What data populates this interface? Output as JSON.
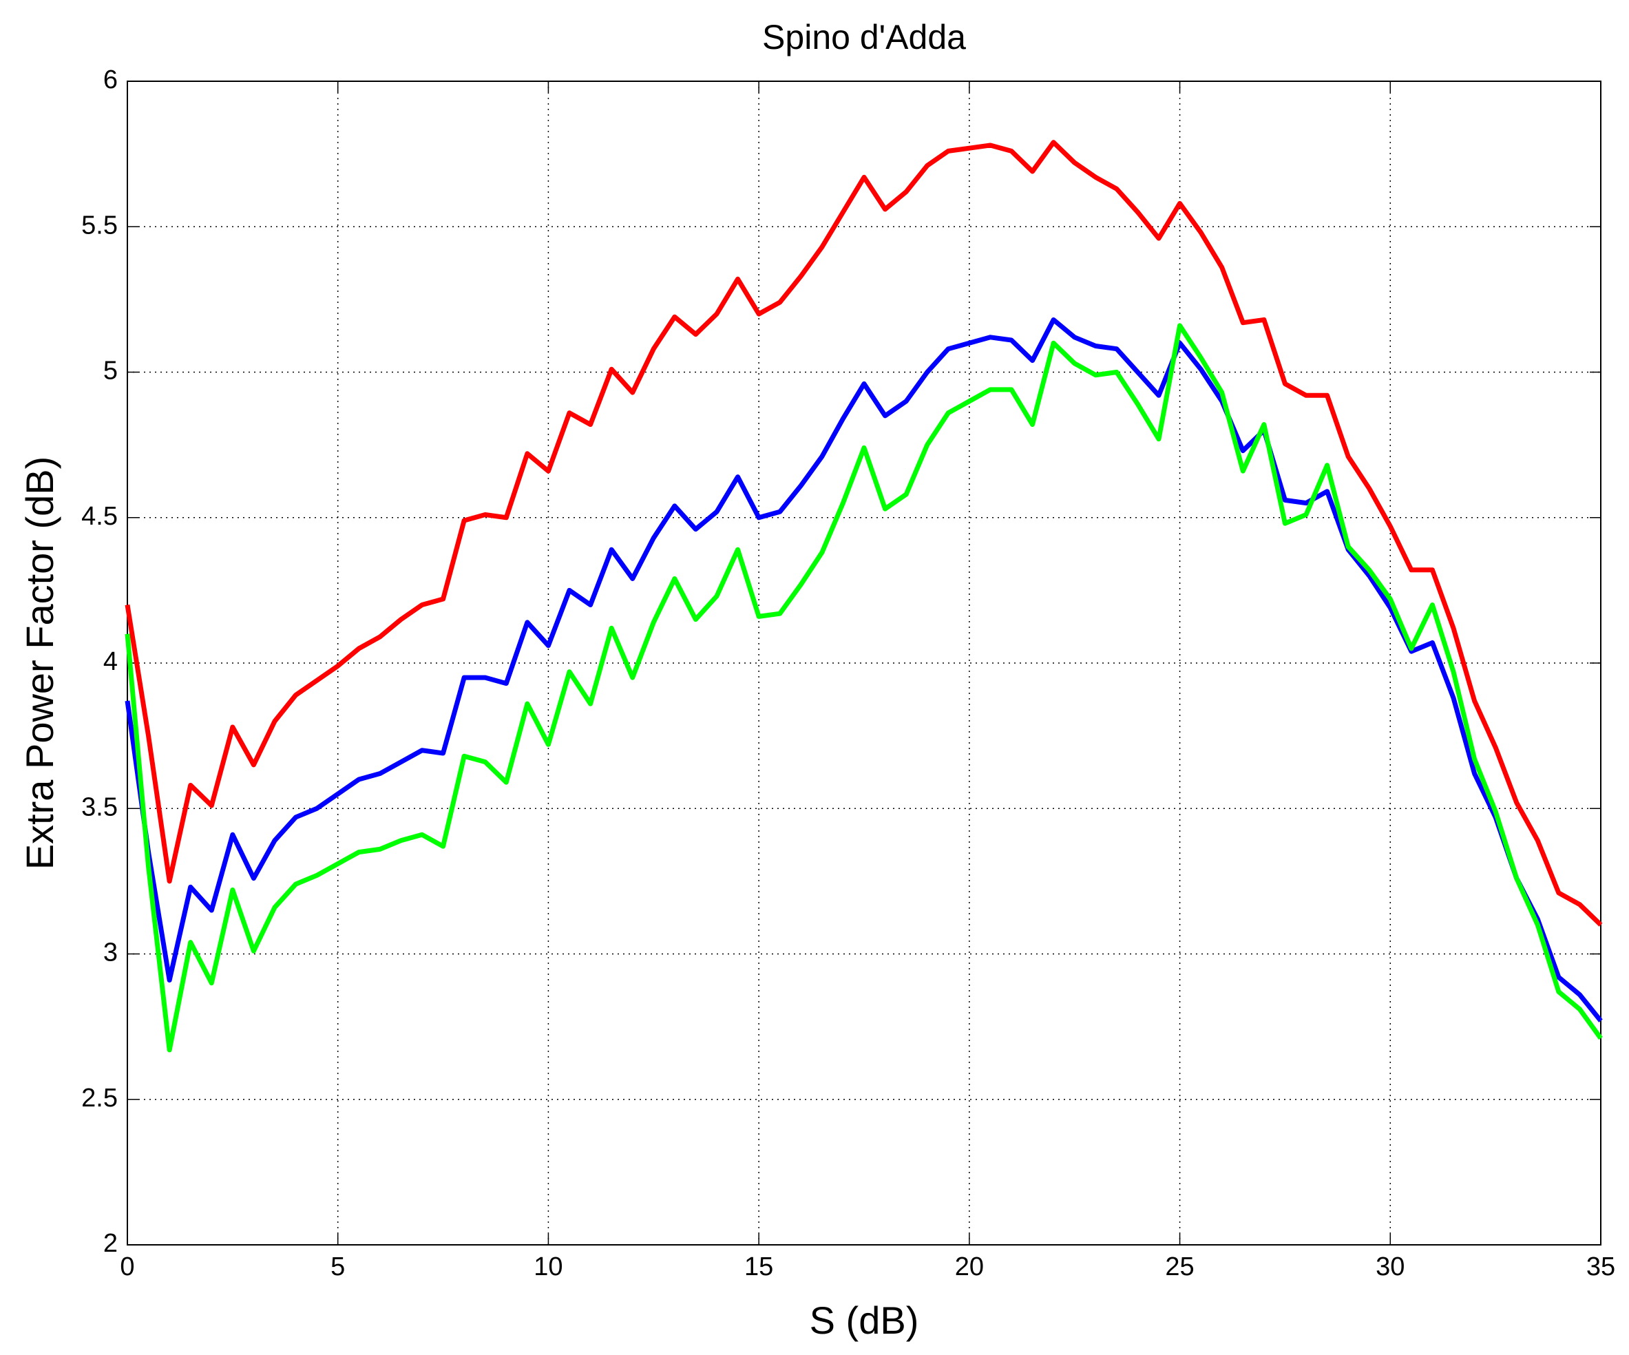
{
  "chart_data": {
    "type": "line",
    "title": "Spino d'Adda",
    "xlabel": "S (dB)",
    "ylabel": "Extra Power Factor (dB)",
    "x": [
      0,
      0.5,
      1,
      1.5,
      2,
      2.5,
      3,
      3.5,
      4,
      4.5,
      5,
      5.5,
      6,
      6.5,
      7,
      7.5,
      8,
      8.5,
      9,
      9.5,
      10,
      10.5,
      11,
      11.5,
      12,
      12.5,
      13,
      13.5,
      14,
      14.5,
      15,
      15.5,
      16,
      16.5,
      17,
      17.5,
      18,
      18.5,
      19,
      19.5,
      20,
      20.5,
      21,
      21.5,
      22,
      22.5,
      23,
      23.5,
      24,
      24.5,
      25,
      25.5,
      26,
      26.5,
      27,
      27.5,
      28,
      28.5,
      29,
      29.5,
      30,
      30.5,
      31,
      31.5,
      32,
      32.5,
      33,
      33.5,
      34,
      34.5,
      35
    ],
    "series": [
      {
        "color": "#ff0000",
        "values": [
          4.2,
          3.75,
          3.25,
          3.58,
          3.51,
          3.78,
          3.65,
          3.8,
          3.89,
          3.94,
          3.99,
          4.05,
          4.09,
          4.15,
          4.2,
          4.22,
          4.49,
          4.51,
          4.5,
          4.72,
          4.66,
          4.86,
          4.82,
          5.01,
          4.93,
          5.08,
          5.19,
          5.13,
          5.2,
          5.32,
          5.2,
          5.24,
          5.33,
          5.43,
          5.55,
          5.67,
          5.56,
          5.62,
          5.71,
          5.76,
          5.77,
          5.78,
          5.76,
          5.69,
          5.79,
          5.72,
          5.67,
          5.63,
          5.55,
          5.46,
          5.58,
          5.48,
          5.36,
          5.17,
          5.18,
          4.96,
          4.92,
          4.92,
          4.71,
          4.6,
          4.47,
          4.32,
          4.32,
          4.12,
          3.87,
          3.71,
          3.52,
          3.39,
          3.21,
          3.17,
          3.1
        ]
      },
      {
        "color": "#0000ff",
        "values": [
          3.87,
          3.35,
          2.91,
          3.23,
          3.15,
          3.41,
          3.26,
          3.39,
          3.47,
          3.5,
          3.55,
          3.6,
          3.62,
          3.66,
          3.7,
          3.69,
          3.95,
          3.95,
          3.93,
          4.14,
          4.06,
          4.25,
          4.2,
          4.39,
          4.29,
          4.43,
          4.54,
          4.46,
          4.52,
          4.64,
          4.5,
          4.52,
          4.61,
          4.71,
          4.84,
          4.96,
          4.85,
          4.9,
          5.0,
          5.08,
          5.1,
          5.12,
          5.11,
          5.04,
          5.18,
          5.12,
          5.09,
          5.08,
          5.0,
          4.92,
          5.1,
          5.01,
          4.9,
          4.73,
          4.8,
          4.56,
          4.55,
          4.59,
          4.39,
          4.3,
          4.19,
          4.04,
          4.07,
          3.88,
          3.62,
          3.47,
          3.26,
          3.12,
          2.92,
          2.86,
          2.77
        ]
      },
      {
        "color": "#00ff00",
        "values": [
          4.1,
          3.3,
          2.67,
          3.04,
          2.9,
          3.22,
          3.01,
          3.16,
          3.24,
          3.27,
          3.31,
          3.35,
          3.36,
          3.39,
          3.41,
          3.37,
          3.68,
          3.66,
          3.59,
          3.86,
          3.72,
          3.97,
          3.86,
          4.12,
          3.95,
          4.14,
          4.29,
          4.15,
          4.23,
          4.39,
          4.16,
          4.17,
          4.27,
          4.38,
          4.55,
          4.74,
          4.53,
          4.58,
          4.75,
          4.86,
          4.9,
          4.94,
          4.94,
          4.82,
          5.1,
          5.03,
          4.99,
          5.0,
          4.89,
          4.77,
          5.16,
          5.05,
          4.93,
          4.66,
          4.82,
          4.48,
          4.51,
          4.68,
          4.4,
          4.32,
          4.22,
          4.05,
          4.2,
          3.97,
          3.67,
          3.49,
          3.26,
          3.1,
          2.87,
          2.81,
          2.71
        ]
      }
    ],
    "xlim": [
      0,
      35
    ],
    "xticks": [
      0,
      5,
      10,
      15,
      20,
      25,
      30,
      35
    ],
    "ylim": [
      2,
      6
    ],
    "yticks": [
      2,
      2.5,
      3,
      3.5,
      4,
      4.5,
      5,
      5.5,
      6
    ],
    "grid": true
  }
}
